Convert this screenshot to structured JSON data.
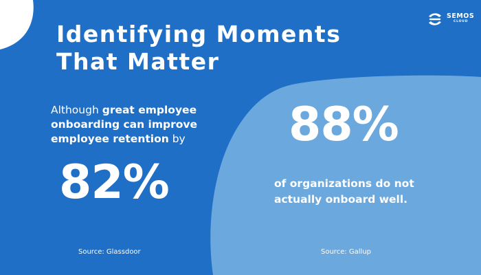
{
  "colors": {
    "background": "#1f6fc6",
    "blob": "#6ba8dd",
    "corner": "#ffffff",
    "text": "#ffffff"
  },
  "title": {
    "line1": "Identifying Moments",
    "line2": "That Matter"
  },
  "logo": {
    "name": "SEMOS",
    "sub": "CLOUD",
    "icon": "semos-logo-icon"
  },
  "left": {
    "lead_prefix": "Although ",
    "lead_bold": "great employee onboarding can improve employee retention",
    "lead_suffix": " by",
    "stat": "82%",
    "source": "Source: Glassdoor"
  },
  "right": {
    "stat": "88%",
    "desc_line1": "of organizations do not",
    "desc_line2": "actually onboard well.",
    "source": "Source: Gallup"
  }
}
